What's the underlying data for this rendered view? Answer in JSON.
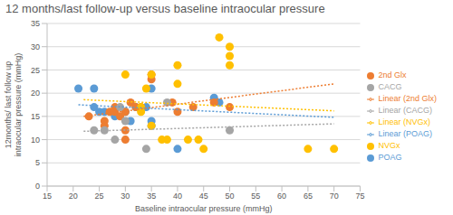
{
  "chart_data": {
    "type": "scatter",
    "title": "12 months/last follow-up versus baseline intraocular pressure",
    "x_label": "Baseline intraocular pressure (mmHg)",
    "y_label": "12months/ last follow up intraocular pressure (mmHg)",
    "xlim": [
      15,
      75
    ],
    "xticks": [
      15,
      20,
      25,
      30,
      35,
      40,
      45,
      50,
      55,
      60,
      65,
      70,
      75
    ],
    "ylim": [
      0,
      35
    ],
    "yticks": [
      0,
      5,
      10,
      15,
      20,
      25,
      30,
      35
    ],
    "grid": true,
    "legend": "right",
    "series": [
      {
        "name": "POAG",
        "type": "scatter",
        "marker": "circle",
        "color": "#5b9bd5",
        "x": [
          21,
          24,
          24,
          25,
          26,
          28,
          30,
          31,
          32,
          34,
          35,
          35,
          35,
          40,
          47,
          48
        ],
        "values": [
          21,
          21,
          17,
          16,
          16,
          15,
          16,
          14,
          17,
          17,
          14,
          21,
          13,
          8,
          19,
          18
        ]
      },
      {
        "name": "2nd Glx",
        "type": "scatter",
        "marker": "circle",
        "color": "#ed7d31",
        "x": [
          23,
          26,
          26,
          27,
          28,
          28,
          29,
          30,
          30,
          30,
          31,
          32,
          33,
          35,
          35,
          39,
          40,
          43,
          47,
          50
        ],
        "values": [
          15,
          14,
          13,
          16,
          17,
          16,
          15,
          10,
          12,
          16,
          18,
          17,
          17,
          24,
          23,
          18,
          16,
          17,
          18,
          17
        ]
      },
      {
        "name": "CACG",
        "type": "scatter",
        "marker": "circle",
        "color": "#a5a5a5",
        "x": [
          24,
          26,
          28,
          29,
          30,
          34,
          38,
          50
        ],
        "values": [
          12,
          12,
          10,
          17,
          14,
          8,
          18,
          12
        ]
      },
      {
        "name": "NVGx",
        "type": "scatter",
        "marker": "circle",
        "color": "#ffc000",
        "x": [
          30,
          33,
          33,
          34,
          35,
          35,
          37,
          38,
          40,
          40,
          42,
          44,
          45,
          48,
          50,
          50,
          50,
          65,
          70
        ],
        "values": [
          24,
          16,
          17,
          21,
          13,
          24,
          10,
          10,
          26,
          22,
          10,
          10,
          8,
          32,
          30,
          28,
          26,
          8,
          8
        ]
      },
      {
        "name": "Linear (POAG)",
        "type": "line",
        "line_style": "dotted",
        "color": "#5b9bd5",
        "x": [
          21,
          70
        ],
        "values": [
          17.5,
          14.8
        ]
      },
      {
        "name": "Linear (2nd Glx)",
        "type": "line",
        "line_style": "dotted",
        "color": "#ed7d31",
        "x": [
          22,
          70
        ],
        "values": [
          15,
          22
        ]
      },
      {
        "name": "Linear (CACG)",
        "type": "line",
        "line_style": "dotted",
        "color": "#a5a5a5",
        "x": [
          22,
          70
        ],
        "values": [
          11.8,
          13.4
        ]
      },
      {
        "name": "Linear (NVGx)",
        "type": "line",
        "line_style": "dotted",
        "color": "#ffc000",
        "x": [
          22,
          70
        ],
        "values": [
          18.6,
          16.2
        ]
      }
    ]
  }
}
